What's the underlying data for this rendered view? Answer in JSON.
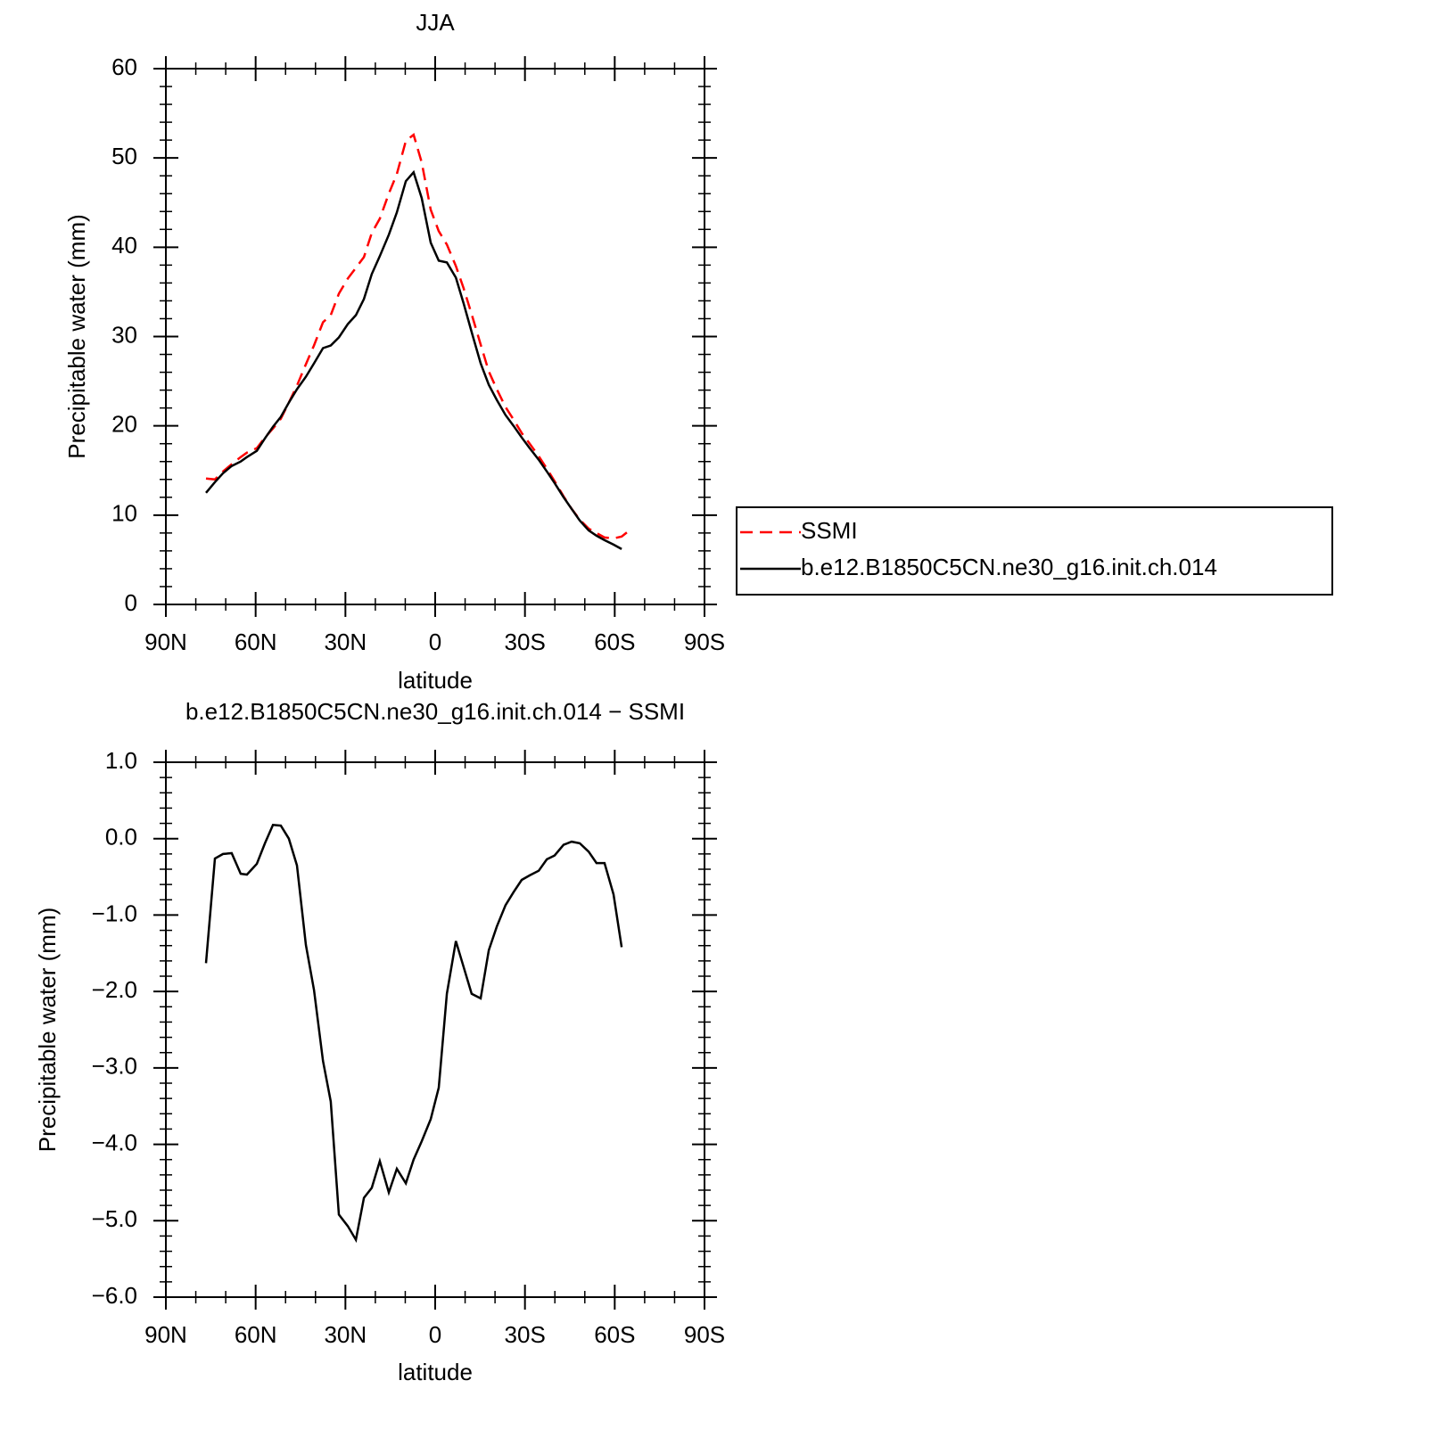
{
  "chart_data": [
    {
      "type": "line",
      "title": "JJA",
      "xlabel": "latitude",
      "ylabel": "Precipitable water (mm)",
      "x": [
        76.6,
        73.6,
        70.9,
        68.0,
        65.0,
        62.9,
        59.6,
        56.9,
        54.2,
        51.6,
        48.9,
        46.2,
        43.2,
        40.5,
        37.5,
        34.9,
        32.2,
        29.2,
        26.5,
        23.8,
        21.2,
        18.5,
        15.5,
        12.8,
        9.8,
        7.2,
        4.5,
        1.5,
        -1.2,
        -3.9,
        -6.9,
        -9.5,
        -12.2,
        -15.2,
        -17.9,
        -20.6,
        -23.5,
        -26.2,
        -28.9,
        -31.6,
        -34.6,
        -37.3,
        -39.9,
        -42.9,
        -45.6,
        -48.3,
        -51.3,
        -53.9,
        -56.6,
        -59.6,
        -62.3,
        -65.3
      ],
      "series": [
        {
          "name": "SSMI",
          "color": "#ff0000",
          "style": "dashed",
          "values": [
            14.1,
            14.0,
            14.9,
            15.7,
            16.5,
            17.0,
            17.5,
            18.7,
            19.7,
            20.8,
            22.6,
            24.5,
            26.9,
            29.0,
            31.6,
            32.4,
            34.8,
            36.5,
            37.7,
            38.9,
            41.6,
            43.2,
            46.0,
            48.2,
            51.9,
            52.6,
            49.5,
            44.2,
            41.8,
            40.3,
            37.9,
            35.4,
            32.5,
            29.1,
            26.1,
            24.1,
            22.1,
            20.7,
            19.2,
            18.0,
            16.6,
            15.2,
            13.8,
            12.1,
            10.7,
            9.5,
            8.5,
            8.0,
            7.5,
            7.4,
            7.6,
            8.4
          ]
        },
        {
          "name": "b.e12.B1850C5CN.ne30_g16.init.ch.014",
          "color": "#000000",
          "style": "solid",
          "values": [
            12.5,
            13.7,
            14.7,
            15.5,
            16.0,
            16.5,
            17.2,
            18.6,
            19.9,
            21.0,
            22.6,
            24.1,
            25.5,
            27.0,
            28.7,
            29.0,
            29.9,
            31.4,
            32.4,
            34.2,
            37.0,
            39.0,
            41.4,
            43.9,
            47.4,
            48.4,
            45.5,
            40.5,
            38.5,
            38.3,
            36.6,
            33.7,
            30.5,
            27.0,
            24.6,
            22.9,
            21.2,
            20.0,
            18.7,
            17.5,
            16.2,
            14.9,
            13.6,
            12.0,
            10.7,
            9.4,
            8.3,
            7.7,
            7.2,
            6.7,
            6.2,
            null
          ]
        }
      ],
      "xlim": [
        90,
        -90
      ],
      "xticks": [
        {
          "value": 90,
          "label": "90N"
        },
        {
          "value": 60,
          "label": "60N"
        },
        {
          "value": 30,
          "label": "30N"
        },
        0,
        {
          "value": -30,
          "label": "30S"
        },
        {
          "value": -60,
          "label": "60S"
        },
        {
          "value": -90,
          "label": "90S"
        }
      ],
      "ylim": [
        0,
        60
      ],
      "yticks": [
        0,
        10,
        20,
        30,
        40,
        50,
        60
      ],
      "legend": "right"
    },
    {
      "type": "line",
      "title": "b.e12.B1850C5CN.ne30_g16.init.ch.014 − SSMI",
      "xlabel": "latitude",
      "ylabel": "Precipitable water (mm)",
      "x": [
        76.6,
        73.6,
        70.9,
        68.0,
        65.0,
        62.9,
        59.6,
        56.9,
        54.2,
        51.6,
        48.9,
        46.2,
        43.2,
        40.5,
        37.5,
        34.9,
        32.2,
        29.2,
        26.5,
        23.8,
        21.2,
        18.5,
        15.5,
        12.8,
        9.8,
        7.2,
        4.5,
        1.5,
        -1.2,
        -3.9,
        -6.9,
        -9.5,
        -12.2,
        -15.2,
        -17.9,
        -20.6,
        -23.5,
        -26.2,
        -28.9,
        -31.6,
        -34.6,
        -37.3,
        -39.9,
        -42.9,
        -45.6,
        -48.3,
        -51.3,
        -53.9,
        -56.6,
        -59.6,
        -62.3
      ],
      "values": [
        -1.63,
        -0.26,
        -0.2,
        -0.19,
        -0.46,
        -0.47,
        -0.33,
        -0.06,
        0.18,
        0.17,
        0,
        -0.35,
        -1.39,
        -1.98,
        -2.91,
        -3.44,
        -4.92,
        -5.07,
        -5.25,
        -4.7,
        -4.57,
        -4.22,
        -4.63,
        -4.32,
        -4.51,
        -4.2,
        -3.96,
        -3.67,
        -3.26,
        -2.03,
        -1.34,
        -1.68,
        -2.03,
        -2.09,
        -1.46,
        -1.15,
        -0.87,
        -0.7,
        -0.54,
        -0.48,
        -0.42,
        -0.27,
        -0.22,
        -0.08,
        -0.04,
        -0.06,
        -0.17,
        -0.32,
        -0.32,
        -0.73,
        -1.42
      ],
      "color": "#000000",
      "xlim": [
        90,
        -90
      ],
      "xticks": [
        {
          "value": 90,
          "label": "90N"
        },
        {
          "value": 60,
          "label": "60N"
        },
        {
          "value": 30,
          "label": "30N"
        },
        0,
        {
          "value": -30,
          "label": "30S"
        },
        {
          "value": -60,
          "label": "60S"
        },
        {
          "value": -90,
          "label": "90S"
        }
      ],
      "ylim": [
        -6,
        1
      ],
      "yticks": [
        {
          "value": -6,
          "label": "−6.0"
        },
        {
          "value": -5,
          "label": "−5.0"
        },
        {
          "value": -4,
          "label": "−4.0"
        },
        {
          "value": -3,
          "label": "−3.0"
        },
        {
          "value": -2,
          "label": "−2.0"
        },
        {
          "value": -1,
          "label": "−1.0"
        },
        {
          "value": 0,
          "label": "0.0"
        },
        {
          "value": 1,
          "label": "1.0"
        }
      ]
    }
  ]
}
